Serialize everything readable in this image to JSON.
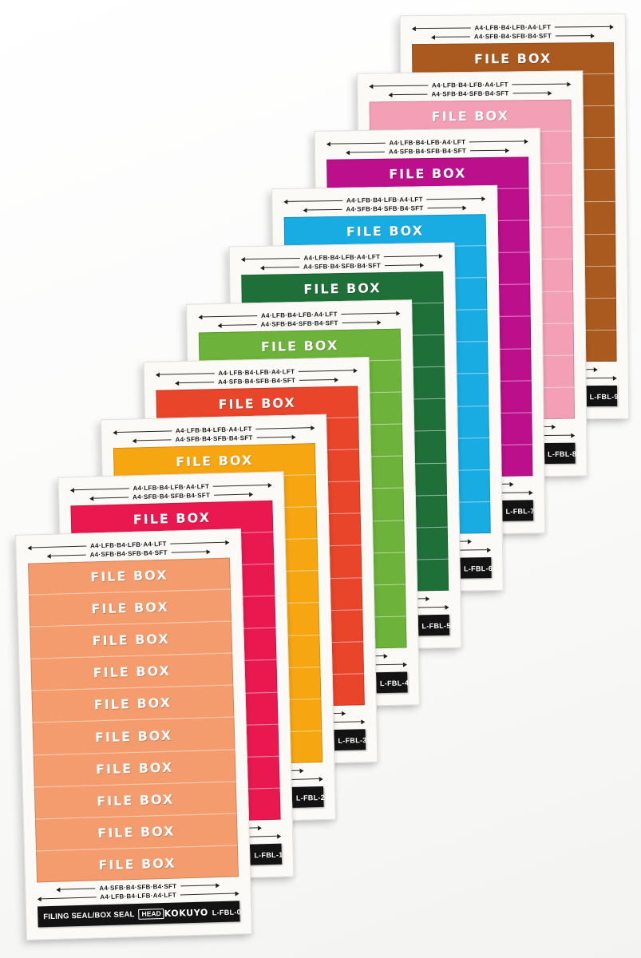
{
  "product": {
    "label_text": "FILE BOX",
    "size_line_long": "A4·LFB·B4·LFB·A4·LFT",
    "size_line_short": "A4·SFB·B4·SFB·B4·SFT",
    "series_label": "FILING SEAL/BOX SEAL",
    "head_badge": "HEAD",
    "brand": "KOKUYO",
    "rows_per_sheet": 10
  },
  "sheets": [
    {
      "code": "L-FBL-0",
      "color_name": "salmon-orange",
      "color": "#f59c6e"
    },
    {
      "code": "L-FBL-1",
      "color_name": "crimson-pink",
      "color": "#e91950"
    },
    {
      "code": "L-FBL-2",
      "color_name": "amber-yellow",
      "color": "#f6a611"
    },
    {
      "code": "L-FBL-3",
      "color_name": "red-orange",
      "color": "#e8452a"
    },
    {
      "code": "L-FBL-4",
      "color_name": "yellow-green",
      "color": "#6db23a"
    },
    {
      "code": "L-FBL-5",
      "color_name": "dark-green",
      "color": "#1f7038"
    },
    {
      "code": "L-FBL-6",
      "color_name": "cyan-blue",
      "color": "#18ace2"
    },
    {
      "code": "L-FBL-7",
      "color_name": "magenta",
      "color": "#bc0f8c"
    },
    {
      "code": "L-FBL-8",
      "color_name": "pink",
      "color": "#f3a0b6"
    },
    {
      "code": "L-FBL-9",
      "color_name": "rust-brown",
      "color": "#aa5a1f"
    }
  ]
}
